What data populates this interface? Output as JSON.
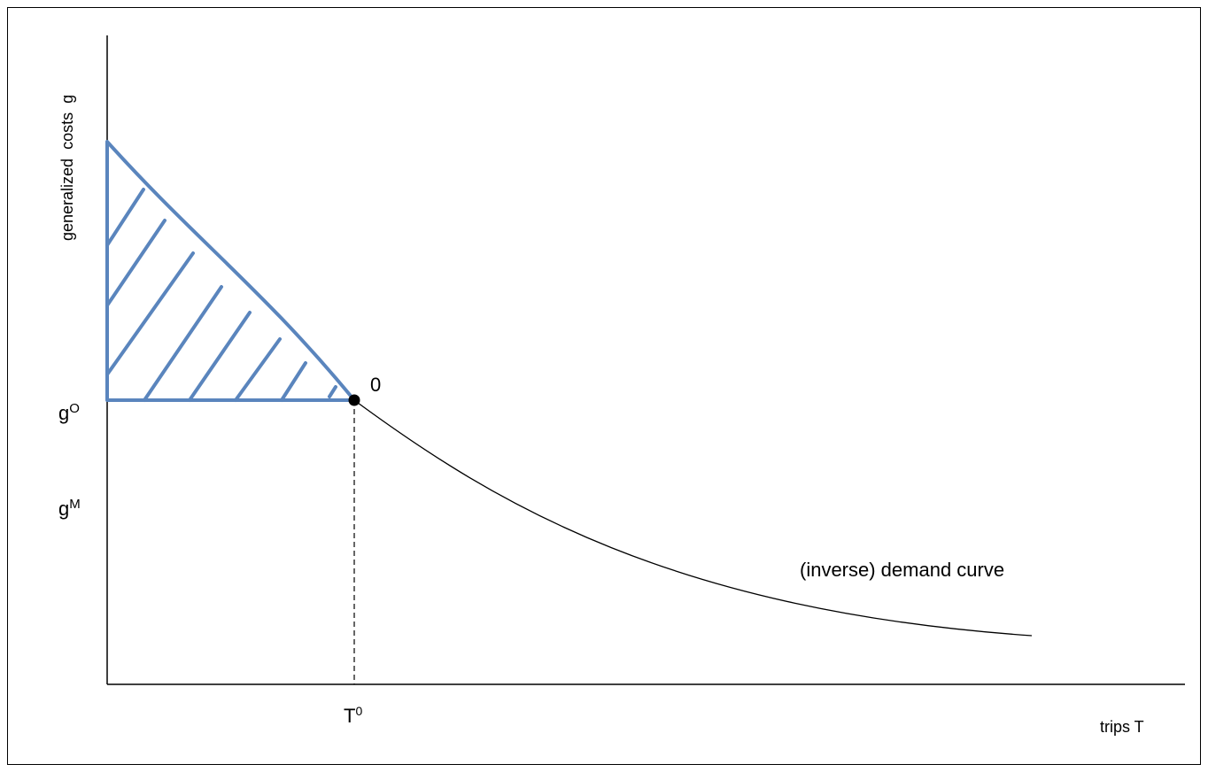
{
  "diagram": {
    "y_axis_label": "generalized  costs  g",
    "x_axis_label": "trips T",
    "curve_label": "(inverse) demand curve",
    "point_label": "0",
    "g_o": {
      "base": "g",
      "sup": "O"
    },
    "g_m": {
      "base": "g",
      "sup": "M"
    },
    "t_0": {
      "base": "T",
      "sup": "0"
    },
    "colors": {
      "shading": "#5a85bd",
      "curve": "#000000",
      "axes": "#000000"
    }
  }
}
